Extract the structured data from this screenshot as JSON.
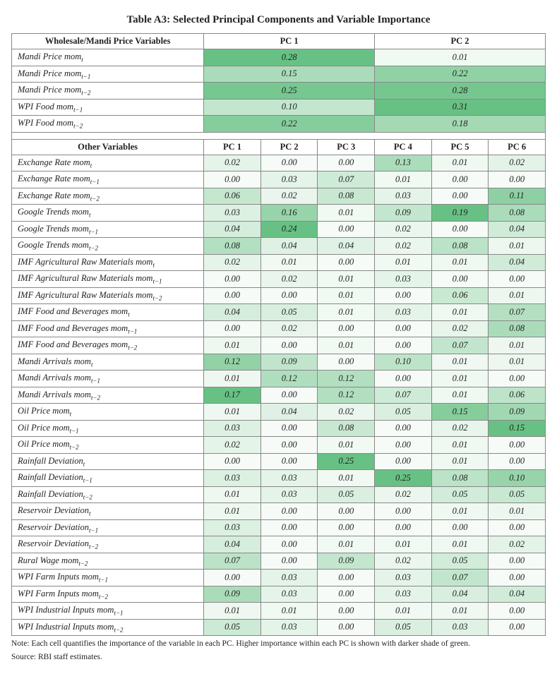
{
  "title": "Table A3: Selected Principal Components and Variable Importance",
  "note_line1": "Note: Each cell quantifies the importance of the variable in each PC. Higher importance within each PC is shown with darker shade of green.",
  "note_line2": "Source: RBI staff estimates.",
  "section1": {
    "header_var": "Wholesale/Mandi Price Variables",
    "pc_headers": [
      "PC 1",
      "PC 2"
    ],
    "rows": [
      {
        "name": "Mandi Price mom",
        "sub": "t",
        "v": [
          0.28,
          0.01
        ]
      },
      {
        "name": "Mandi Price mom",
        "sub": "t−1",
        "v": [
          0.15,
          0.22
        ]
      },
      {
        "name": "Mandi Price mom",
        "sub": "t−2",
        "v": [
          0.25,
          0.28
        ]
      },
      {
        "name": "WPI Food mom",
        "sub": "t−1",
        "v": [
          0.1,
          0.31
        ]
      },
      {
        "name": "WPI Food mom",
        "sub": "t−2",
        "v": [
          0.22,
          0.18
        ]
      }
    ],
    "col_max": [
      0.28,
      0.31
    ]
  },
  "section2": {
    "header_var": "Other Variables",
    "pc_headers": [
      "PC 1",
      "PC 2",
      "PC 3",
      "PC 4",
      "PC 5",
      "PC 6"
    ],
    "rows": [
      {
        "name": "Exchange Rate mom",
        "sub": "t",
        "v": [
          0.02,
          0.0,
          0.0,
          0.13,
          0.01,
          0.02
        ]
      },
      {
        "name": "Exchange Rate mom",
        "sub": "t−1",
        "v": [
          0.0,
          0.03,
          0.07,
          0.01,
          0.0,
          0.0
        ]
      },
      {
        "name": "Exchange Rate mom",
        "sub": "t−2",
        "v": [
          0.06,
          0.02,
          0.08,
          0.03,
          0.0,
          0.11
        ]
      },
      {
        "name": "Google Trends mom",
        "sub": "t",
        "v": [
          0.03,
          0.16,
          0.01,
          0.09,
          0.19,
          0.08
        ]
      },
      {
        "name": "Google Trends mom",
        "sub": "t−1",
        "v": [
          0.04,
          0.24,
          0.0,
          0.02,
          0.0,
          0.04
        ]
      },
      {
        "name": "Google Trends mom",
        "sub": "t−2",
        "v": [
          0.08,
          0.04,
          0.04,
          0.02,
          0.08,
          0.01
        ]
      },
      {
        "name": "IMF Agricultural Raw Materials mom",
        "sub": "t",
        "v": [
          0.02,
          0.01,
          0.0,
          0.01,
          0.01,
          0.04
        ]
      },
      {
        "name": "IMF Agricultural Raw Materials mom",
        "sub": "t−1",
        "v": [
          0.0,
          0.02,
          0.01,
          0.03,
          0.0,
          0.0
        ]
      },
      {
        "name": "IMF Agricultural Raw Materials mom",
        "sub": "t−2",
        "v": [
          0.0,
          0.0,
          0.01,
          0.0,
          0.06,
          0.01
        ]
      },
      {
        "name": "IMF Food and Beverages mom",
        "sub": "t",
        "v": [
          0.04,
          0.05,
          0.01,
          0.03,
          0.01,
          0.07
        ]
      },
      {
        "name": "IMF Food and Beverages mom",
        "sub": "t−1",
        "v": [
          0.0,
          0.02,
          0.0,
          0.0,
          0.02,
          0.08
        ]
      },
      {
        "name": "IMF Food and Beverages mom",
        "sub": "t−2",
        "v": [
          0.01,
          0.0,
          0.01,
          0.0,
          0.07,
          0.01
        ]
      },
      {
        "name": "Mandi Arrivals mom",
        "sub": "t",
        "v": [
          0.12,
          0.09,
          0.0,
          0.1,
          0.01,
          0.01
        ]
      },
      {
        "name": "Mandi Arrivals mom",
        "sub": "t−1",
        "v": [
          0.01,
          0.12,
          0.12,
          0.0,
          0.01,
          0.0
        ]
      },
      {
        "name": "Mandi Arrivals mom",
        "sub": "t−2",
        "v": [
          0.17,
          0.0,
          0.12,
          0.07,
          0.01,
          0.06
        ]
      },
      {
        "name": "Oil Price mom",
        "sub": "t",
        "v": [
          0.01,
          0.04,
          0.02,
          0.05,
          0.15,
          0.09
        ]
      },
      {
        "name": "Oil Price mom",
        "sub": "t−1",
        "v": [
          0.03,
          0.0,
          0.08,
          0.0,
          0.02,
          0.15
        ]
      },
      {
        "name": "Oil Price mom",
        "sub": "t−2",
        "v": [
          0.02,
          0.0,
          0.01,
          0.0,
          0.01,
          0.0
        ]
      },
      {
        "name": "Rainfall Deviation",
        "sub": "t",
        "v": [
          0.0,
          0.0,
          0.25,
          0.0,
          0.01,
          0.0
        ]
      },
      {
        "name": "Rainfall Deviation",
        "sub": "t−1",
        "v": [
          0.03,
          0.03,
          0.01,
          0.25,
          0.08,
          0.1
        ]
      },
      {
        "name": "Rainfall Deviation",
        "sub": "t−2",
        "v": [
          0.01,
          0.03,
          0.05,
          0.02,
          0.05,
          0.05
        ]
      },
      {
        "name": "Reservoir Deviation",
        "sub": "t",
        "v": [
          0.01,
          0.0,
          0.0,
          0.0,
          0.01,
          0.01
        ]
      },
      {
        "name": "Reservoir Deviation",
        "sub": "t−1",
        "v": [
          0.03,
          0.0,
          0.0,
          0.0,
          0.0,
          0.0
        ]
      },
      {
        "name": "Reservoir Deviation",
        "sub": "t−2",
        "v": [
          0.04,
          0.0,
          0.01,
          0.01,
          0.01,
          0.02
        ]
      },
      {
        "name": "Rural Wage mom",
        "sub": "t−2",
        "v": [
          0.07,
          0.0,
          0.09,
          0.02,
          0.05,
          0.0
        ]
      },
      {
        "name": "WPI Farm Inputs mom",
        "sub": "t−1",
        "v": [
          0.0,
          0.03,
          0.0,
          0.03,
          0.07,
          0.0
        ]
      },
      {
        "name": "WPI Farm Inputs mom",
        "sub": "t−2",
        "v": [
          0.09,
          0.03,
          0.0,
          0.03,
          0.04,
          0.04
        ]
      },
      {
        "name": "WPI Industrial Inputs mom",
        "sub": "t−1",
        "v": [
          0.01,
          0.01,
          0.0,
          0.01,
          0.01,
          0.0
        ]
      },
      {
        "name": "WPI Industrial Inputs mom",
        "sub": "t−2",
        "v": [
          0.05,
          0.03,
          0.0,
          0.05,
          0.03,
          0.0
        ]
      }
    ],
    "col_max": [
      0.17,
      0.24,
      0.25,
      0.25,
      0.19,
      0.15
    ]
  },
  "heat_palette": {
    "min_color": "#f6fbf7",
    "max_color": "#68c184"
  },
  "layout": {
    "varname_col_width_pct": 36,
    "pc_col_width_pct_sec2": 10.666
  }
}
